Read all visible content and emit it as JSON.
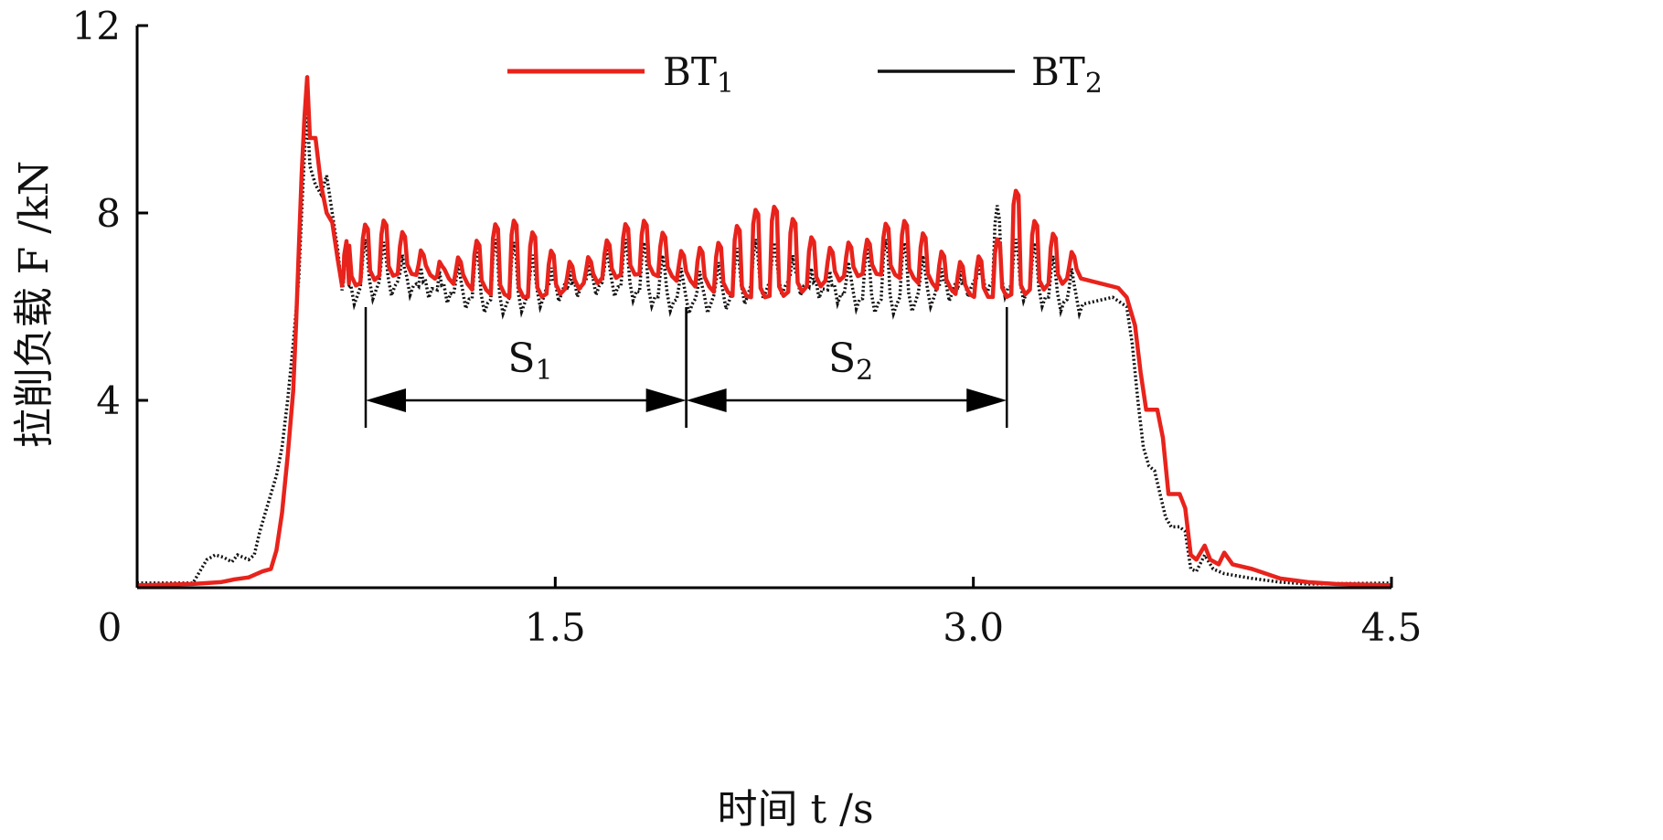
{
  "chart_data": {
    "type": "line",
    "xlabel": "时间 t /s",
    "ylabel": "拉削负载 F /kN",
    "xlim": [
      0,
      4.5
    ],
    "ylim": [
      0,
      12
    ],
    "x_ticks": [
      0,
      1.5,
      3.0,
      4.5
    ],
    "x_tick_labels": [
      "0",
      "1.5",
      "3.0",
      "4.5"
    ],
    "y_ticks": [
      4,
      8,
      12
    ],
    "y_tick_labels": [
      "4",
      "8",
      "12"
    ],
    "grid": false,
    "legend_position": "top",
    "series": [
      {
        "name": "BT1",
        "color": "#e8231c",
        "style": "solid",
        "points": [
          [
            0,
            0.05
          ],
          [
            0.2,
            0.08
          ],
          [
            0.3,
            0.12
          ],
          [
            0.35,
            0.18
          ],
          [
            0.4,
            0.22
          ],
          [
            0.45,
            0.35
          ],
          [
            0.48,
            0.4
          ],
          [
            0.5,
            0.8
          ],
          [
            0.52,
            1.6
          ],
          [
            0.54,
            2.8
          ],
          [
            0.56,
            4.2
          ],
          [
            0.57,
            5.6
          ],
          [
            0.58,
            7.2
          ],
          [
            0.59,
            8.8
          ],
          [
            0.6,
            10.0
          ],
          [
            0.61,
            10.9
          ],
          [
            0.62,
            9.6
          ],
          [
            0.64,
            9.6
          ],
          [
            0.66,
            8.6
          ],
          [
            0.68,
            8.0
          ],
          [
            0.7,
            7.8
          ],
          [
            0.72,
            7.0
          ],
          [
            0.74,
            6.6
          ],
          [
            0.76,
            6.5
          ],
          [
            0.8,
            6.5
          ],
          [
            0.85,
            6.5
          ],
          [
            3.5,
            6.6
          ],
          [
            3.52,
            6.4
          ],
          [
            3.55,
            6.2
          ],
          [
            3.58,
            5.6
          ],
          [
            3.6,
            4.6
          ],
          [
            3.62,
            3.8
          ],
          [
            3.66,
            3.8
          ],
          [
            3.68,
            3.2
          ],
          [
            3.7,
            2.0
          ],
          [
            3.74,
            2.0
          ],
          [
            3.76,
            1.7
          ],
          [
            3.78,
            0.7
          ],
          [
            3.8,
            0.6
          ],
          [
            3.83,
            0.9
          ],
          [
            3.85,
            0.6
          ],
          [
            3.88,
            0.5
          ],
          [
            3.9,
            0.75
          ],
          [
            3.93,
            0.5
          ],
          [
            4.0,
            0.4
          ],
          [
            4.05,
            0.3
          ],
          [
            4.1,
            0.2
          ],
          [
            4.2,
            0.12
          ],
          [
            4.3,
            0.08
          ],
          [
            4.5,
            0.05
          ]
        ]
      },
      {
        "name": "BT2",
        "color": "#111111",
        "style": "dotted",
        "points": [
          [
            0,
            0.1
          ],
          [
            0.2,
            0.1
          ],
          [
            0.22,
            0.3
          ],
          [
            0.25,
            0.6
          ],
          [
            0.28,
            0.7
          ],
          [
            0.31,
            0.65
          ],
          [
            0.34,
            0.55
          ],
          [
            0.36,
            0.7
          ],
          [
            0.4,
            0.6
          ],
          [
            0.42,
            0.7
          ],
          [
            0.44,
            1.2
          ],
          [
            0.46,
            1.6
          ],
          [
            0.48,
            2.0
          ],
          [
            0.5,
            2.4
          ],
          [
            0.52,
            3.0
          ],
          [
            0.54,
            4.0
          ],
          [
            0.56,
            5.2
          ],
          [
            0.58,
            6.6
          ],
          [
            0.59,
            8.0
          ],
          [
            0.6,
            9.2
          ],
          [
            0.61,
            10.2
          ],
          [
            0.62,
            9.0
          ],
          [
            0.64,
            8.6
          ],
          [
            0.66,
            8.4
          ],
          [
            0.68,
            8.8
          ],
          [
            0.7,
            8.0
          ],
          [
            0.72,
            7.2
          ],
          [
            0.74,
            6.5
          ],
          [
            0.76,
            6.4
          ],
          [
            0.8,
            6.4
          ],
          [
            0.85,
            6.3
          ],
          [
            3.45,
            6.3
          ],
          [
            3.5,
            6.2
          ],
          [
            3.55,
            6.0
          ],
          [
            3.57,
            5.2
          ],
          [
            3.59,
            4.0
          ],
          [
            3.61,
            3.0
          ],
          [
            3.63,
            2.6
          ],
          [
            3.65,
            2.5
          ],
          [
            3.67,
            2.0
          ],
          [
            3.69,
            1.5
          ],
          [
            3.71,
            1.3
          ],
          [
            3.74,
            1.3
          ],
          [
            3.76,
            1.2
          ],
          [
            3.78,
            0.4
          ],
          [
            3.8,
            0.35
          ],
          [
            3.83,
            0.7
          ],
          [
            3.86,
            0.4
          ],
          [
            3.9,
            0.3
          ],
          [
            4.0,
            0.2
          ],
          [
            4.1,
            0.12
          ],
          [
            4.2,
            0.08
          ],
          [
            4.5,
            0.1
          ]
        ]
      }
    ],
    "annotations": [
      {
        "label": "S1",
        "label_main": "S",
        "label_sub": "1",
        "x_start": 0.82,
        "x_end": 1.97,
        "arrow_y": 4.0,
        "label_y": 4.9
      },
      {
        "label": "S2",
        "label_main": "S",
        "label_sub": "2",
        "x_start": 1.97,
        "x_end": 3.12,
        "arrow_y": 4.0,
        "label_y": 4.9
      }
    ],
    "legend": [
      {
        "label": "BT1",
        "label_main": "BT",
        "label_sub": "1"
      },
      {
        "label": "BT2",
        "label_main": "BT",
        "label_sub": "2"
      }
    ]
  }
}
